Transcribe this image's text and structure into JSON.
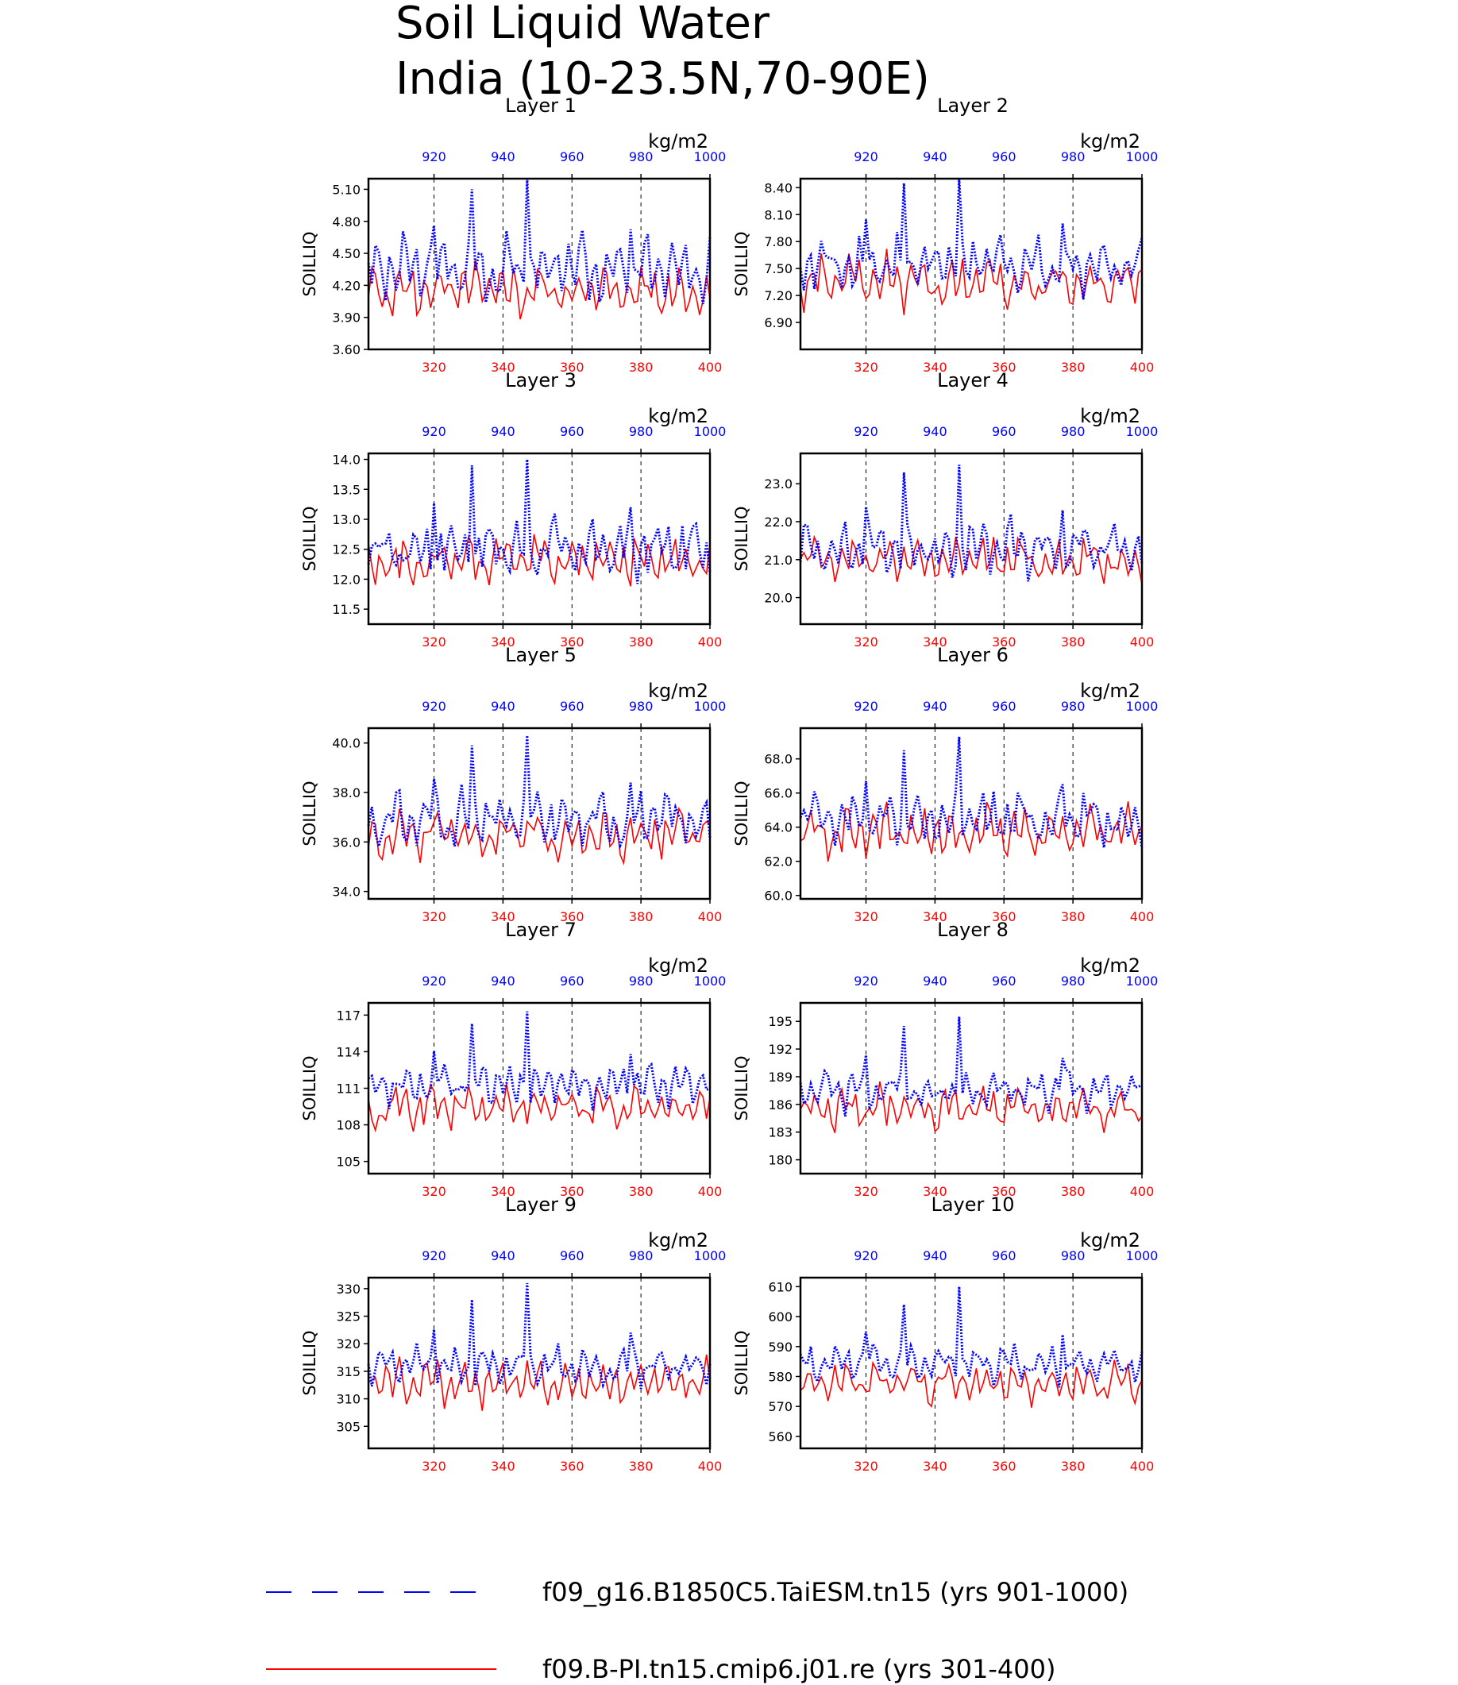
{
  "figure": {
    "title_line1": "Soil Liquid Water",
    "title_line2": "India (10-23.5N,70-90E)"
  },
  "colors": {
    "series_a": "#0000ff",
    "series_b": "#ff0000",
    "axis": "#000000",
    "grid": "#000000"
  },
  "legend": {
    "items": [
      {
        "label": "f09_g16.B1850C5.TaiESM.tn15 (yrs 901-1000)",
        "color": "#0000ff",
        "style": "dashed"
      },
      {
        "label": "f09.B-PI.tn15.cmip6.j01.re (yrs 301-400)",
        "color": "#ff0000",
        "style": "solid"
      }
    ]
  },
  "chart_data": [
    {
      "type": "line",
      "title": "Layer 1",
      "ylabel": "SOILLIQ",
      "units": "kg/m2",
      "ylim": [
        3.6,
        5.2
      ],
      "yticks": [
        "5.10",
        "4.80",
        "4.50",
        "4.20",
        "3.90",
        "3.60"
      ],
      "x_bottom_ticks": [
        320,
        340,
        360,
        380,
        400
      ],
      "x_top_ticks": [
        920,
        940,
        960,
        980,
        1000
      ],
      "xlim_bottom": [
        301,
        400
      ],
      "xlim_top": [
        901,
        1000
      ],
      "series": [
        {
          "x_axis": "top",
          "base": 4.35,
          "amp": 0.3,
          "spike1": 0.75,
          "spike2": 0.85
        },
        {
          "x_axis": "bottom",
          "base": 4.15,
          "amp": 0.25
        }
      ]
    },
    {
      "type": "line",
      "title": "Layer 2",
      "ylabel": "SOILLIQ",
      "units": "kg/m2",
      "ylim": [
        6.6,
        8.5
      ],
      "yticks": [
        "8.40",
        "8.10",
        "7.80",
        "7.50",
        "7.20",
        "6.90"
      ],
      "x_bottom_ticks": [
        320,
        340,
        360,
        380,
        400
      ],
      "x_top_ticks": [
        920,
        940,
        960,
        980,
        1000
      ],
      "xlim_bottom": [
        301,
        400
      ],
      "xlim_top": [
        901,
        1000
      ],
      "series": [
        {
          "x_axis": "top",
          "base": 7.55,
          "amp": 0.3,
          "spike1": 0.9,
          "spike2": 1.0
        },
        {
          "x_axis": "bottom",
          "base": 7.35,
          "amp": 0.3
        }
      ]
    },
    {
      "type": "line",
      "title": "Layer 3",
      "ylabel": "SOILLIQ",
      "units": "kg/m2",
      "ylim": [
        11.25,
        14.1
      ],
      "yticks": [
        "14.0",
        "13.5",
        "13.0",
        "12.5",
        "12.0",
        "11.5"
      ],
      "x_bottom_ticks": [
        320,
        340,
        360,
        380,
        400
      ],
      "x_top_ticks": [
        920,
        940,
        960,
        980,
        1000
      ],
      "xlim_bottom": [
        301,
        400
      ],
      "xlim_top": [
        901,
        1000
      ],
      "series": [
        {
          "x_axis": "top",
          "base": 12.5,
          "amp": 0.5,
          "spike1": 1.4,
          "spike2": 1.5
        },
        {
          "x_axis": "bottom",
          "base": 12.3,
          "amp": 0.45
        }
      ]
    },
    {
      "type": "line",
      "title": "Layer 4",
      "ylabel": "SOILLIQ",
      "units": "kg/m2",
      "ylim": [
        19.3,
        23.8
      ],
      "yticks": [
        "23.0",
        "22.0",
        "21.0",
        "20.0"
      ],
      "x_bottom_ticks": [
        320,
        340,
        360,
        380,
        400
      ],
      "x_top_ticks": [
        920,
        940,
        960,
        980,
        1000
      ],
      "xlim_bottom": [
        301,
        400
      ],
      "xlim_top": [
        901,
        1000
      ],
      "series": [
        {
          "x_axis": "top",
          "base": 21.3,
          "amp": 0.7,
          "spike1": 2.0,
          "spike2": 2.2
        },
        {
          "x_axis": "bottom",
          "base": 21.0,
          "amp": 0.6
        }
      ]
    },
    {
      "type": "line",
      "title": "Layer 5",
      "ylabel": "SOILLIQ",
      "units": "kg/m2",
      "ylim": [
        33.7,
        40.6
      ],
      "yticks": [
        "40.0",
        "38.0",
        "36.0",
        "34.0"
      ],
      "x_bottom_ticks": [
        320,
        340,
        360,
        380,
        400
      ],
      "x_top_ticks": [
        920,
        940,
        960,
        980,
        1000
      ],
      "xlim_bottom": [
        301,
        400
      ],
      "xlim_top": [
        901,
        1000
      ],
      "series": [
        {
          "x_axis": "top",
          "base": 36.9,
          "amp": 1.1,
          "spike1": 3.0,
          "spike2": 3.4
        },
        {
          "x_axis": "bottom",
          "base": 36.3,
          "amp": 1.0
        }
      ]
    },
    {
      "type": "line",
      "title": "Layer 6",
      "ylabel": "SOILLIQ",
      "units": "kg/m2",
      "ylim": [
        59.8,
        69.8
      ],
      "yticks": [
        "68.0",
        "66.0",
        "64.0",
        "62.0",
        "60.0"
      ],
      "x_bottom_ticks": [
        320,
        340,
        360,
        380,
        400
      ],
      "x_top_ticks": [
        920,
        940,
        960,
        980,
        1000
      ],
      "xlim_bottom": [
        301,
        400
      ],
      "xlim_top": [
        901,
        1000
      ],
      "series": [
        {
          "x_axis": "top",
          "base": 64.5,
          "amp": 1.6,
          "spike1": 4.0,
          "spike2": 4.8
        },
        {
          "x_axis": "bottom",
          "base": 63.7,
          "amp": 1.5
        }
      ]
    },
    {
      "type": "line",
      "title": "Layer 7",
      "ylabel": "SOILLIQ",
      "units": "kg/m2",
      "ylim": [
        104.0,
        118.0
      ],
      "yticks": [
        "117",
        "114",
        "111",
        "108",
        "105"
      ],
      "x_bottom_ticks": [
        320,
        340,
        360,
        380,
        400
      ],
      "x_top_ticks": [
        920,
        940,
        960,
        980,
        1000
      ],
      "xlim_bottom": [
        301,
        400
      ],
      "xlim_top": [
        901,
        1000
      ],
      "series": [
        {
          "x_axis": "top",
          "base": 111.3,
          "amp": 1.7,
          "spike1": 5.0,
          "spike2": 6.0
        },
        {
          "x_axis": "bottom",
          "base": 109.5,
          "amp": 1.8
        }
      ]
    },
    {
      "type": "line",
      "title": "Layer 8",
      "ylabel": "SOILLIQ",
      "units": "kg/m2",
      "ylim": [
        178.5,
        197.0
      ],
      "yticks": [
        "195",
        "192",
        "189",
        "186",
        "183",
        "180"
      ],
      "x_bottom_ticks": [
        320,
        340,
        360,
        380,
        400
      ],
      "x_top_ticks": [
        920,
        940,
        960,
        980,
        1000
      ],
      "xlim_bottom": [
        301,
        400
      ],
      "xlim_top": [
        901,
        1000
      ],
      "series": [
        {
          "x_axis": "top",
          "base": 187.5,
          "amp": 2.2,
          "spike1": 7.0,
          "spike2": 8.0
        },
        {
          "x_axis": "bottom",
          "base": 185.5,
          "amp": 2.3
        }
      ]
    },
    {
      "type": "line",
      "title": "Layer 9",
      "ylabel": "SOILLIQ",
      "units": "kg/m2",
      "ylim": [
        301.0,
        332.0
      ],
      "yticks": [
        "330",
        "325",
        "320",
        "315",
        "310",
        "305"
      ],
      "x_bottom_ticks": [
        320,
        340,
        360,
        380,
        400
      ],
      "x_top_ticks": [
        920,
        940,
        960,
        980,
        1000
      ],
      "xlim_bottom": [
        301,
        400
      ],
      "xlim_top": [
        901,
        1000
      ],
      "series": [
        {
          "x_axis": "top",
          "base": 316.0,
          "amp": 3.5,
          "spike1": 12.0,
          "spike2": 15.0
        },
        {
          "x_axis": "bottom",
          "base": 313.0,
          "amp": 4.0
        }
      ]
    },
    {
      "type": "line",
      "title": "Layer 10",
      "ylabel": "SOILLIQ",
      "units": "kg/m2",
      "ylim": [
        556.0,
        613.0
      ],
      "yticks": [
        "610",
        "600",
        "590",
        "580",
        "570",
        "560"
      ],
      "x_bottom_ticks": [
        320,
        340,
        360,
        380,
        400
      ],
      "x_top_ticks": [
        920,
        940,
        960,
        980,
        1000
      ],
      "xlim_bottom": [
        301,
        400
      ],
      "xlim_top": [
        901,
        1000
      ],
      "series": [
        {
          "x_axis": "top",
          "base": 584.0,
          "amp": 6.0,
          "spike1": 20.0,
          "spike2": 26.0
        },
        {
          "x_axis": "bottom",
          "base": 578.0,
          "amp": 7.0
        }
      ]
    }
  ]
}
